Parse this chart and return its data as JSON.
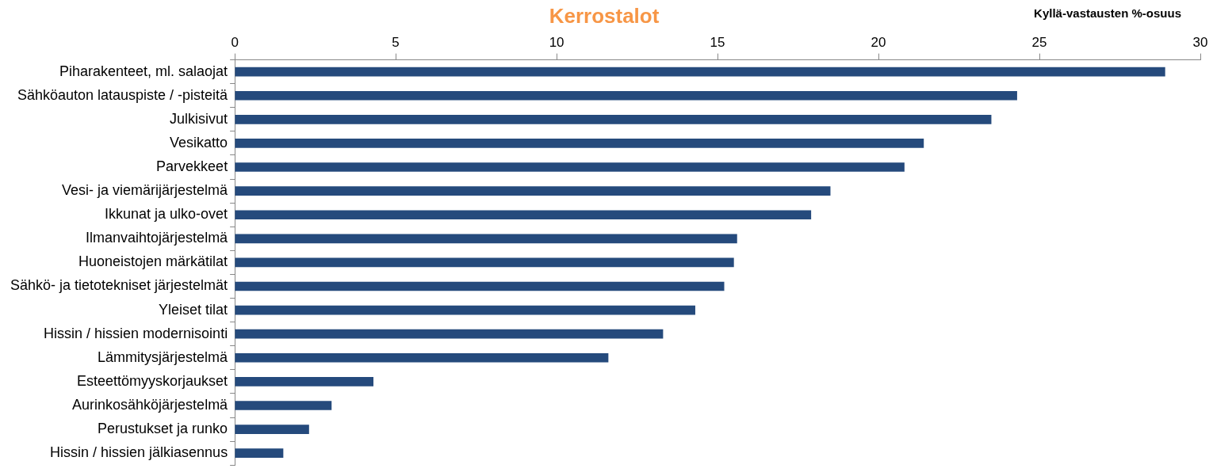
{
  "chart_data": {
    "type": "bar",
    "orientation": "horizontal",
    "title": "Kerrostalot",
    "annotations": [
      "Kyllä-vastausten %-osuus"
    ],
    "categories": [
      "Piharakenteet, ml. salaojat",
      "Sähköauton latauspiste / -pisteitä",
      "Julkisivut",
      "Vesikatto",
      "Parvekkeet",
      "Vesi- ja viemärijärjestelmä",
      "Ikkunat ja ulko-ovet",
      "Ilmanvaihtojärjestelmä",
      "Huoneistojen märkätilat",
      "Sähkö- ja tietotekniset järjestelmät",
      "Yleiset tilat",
      "Hissin / hissien modernisointi",
      "Lämmitysjärjestelmä",
      "Esteettömyyskorjaukset",
      "Aurinkosähköjärjestelmä",
      "Perustukset ja runko",
      "Hissin / hissien jälkiasennus"
    ],
    "values": [
      28.9,
      24.3,
      23.5,
      21.4,
      20.8,
      18.5,
      17.9,
      15.6,
      15.5,
      15.2,
      14.3,
      13.3,
      11.6,
      4.3,
      3.0,
      2.3,
      1.5
    ],
    "color": "#254a7c",
    "xlim": [
      0,
      30
    ],
    "xticks": [
      0,
      5,
      10,
      15,
      20,
      25,
      30
    ],
    "grid": false,
    "legend": false
  }
}
